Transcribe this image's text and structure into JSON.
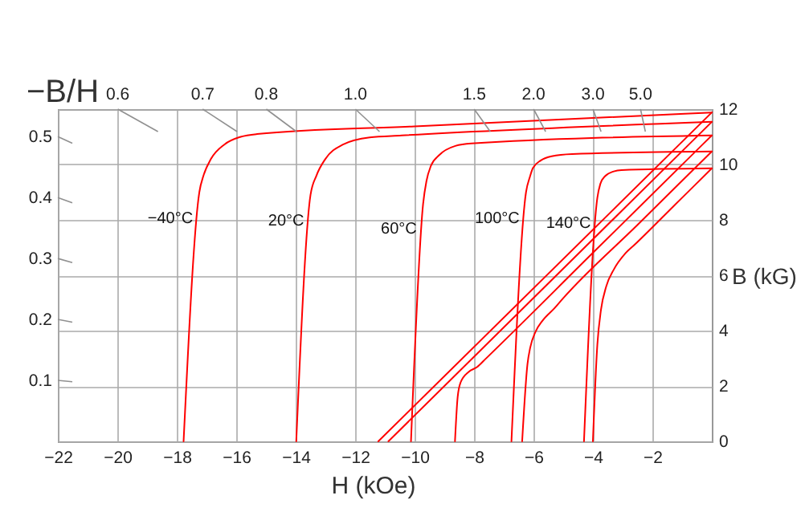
{
  "chart_data": {
    "type": "line",
    "xlabel": "H (kOe)",
    "ylabel": "−B/H",
    "y2label": "B (kG)",
    "xlim": [
      -22,
      0
    ],
    "xticks": [
      -22,
      -20,
      -18,
      -16,
      -14,
      -12,
      -10,
      -8,
      -6,
      -4,
      -2
    ],
    "ylim": [
      0,
      0.545
    ],
    "yticks": [
      0.1,
      0.2,
      0.3,
      0.4,
      0.5
    ],
    "y2lim": [
      0,
      12
    ],
    "y2ticks": [
      0,
      2,
      4,
      6,
      8,
      10,
      12
    ],
    "grid": true,
    "line_style": "solid",
    "annotations": [
      "0.6",
      "0.7",
      "0.8",
      "1.0",
      "1.5",
      "2.0",
      "3.0",
      "5.0"
    ],
    "series": [
      {
        "name": "−40°C",
        "color": "#ff0000",
        "axis": "y2",
        "x": [
          -17.77,
          -17.24,
          -17.1,
          -16.85,
          -16.4,
          -15.85,
          -15.3,
          -10,
          0
        ],
        "values": [
          0,
          9.0,
          9.6,
          10.2,
          10.72,
          11.0,
          11.1,
          11.38,
          11.88
        ]
      },
      {
        "color": "#ff0000",
        "axis": "y2",
        "x": [
          -11.22,
          0
        ],
        "values": [
          0,
          11.88
        ]
      },
      {
        "name": "20°C",
        "color": "#ff0000",
        "axis": "y2",
        "x": [
          -13.98,
          -13.5,
          -13.3,
          -13.0,
          -12.41,
          -11.51,
          -10.43,
          0
        ],
        "values": [
          0,
          8.9,
          9.6,
          10.2,
          10.72,
          10.98,
          11.05,
          11.54
        ]
      },
      {
        "color": "#ff0000",
        "axis": "y2",
        "x": [
          -10.88,
          0
        ],
        "values": [
          0,
          11.54
        ]
      },
      {
        "name": "60°C",
        "color": "#ff0000",
        "axis": "y2",
        "x": [
          -10.12,
          -9.71,
          -9.6,
          -9.45,
          -9.17,
          -8.63,
          -8.09,
          0
        ],
        "values": [
          0,
          8.6,
          9.4,
          9.95,
          10.34,
          10.67,
          10.76,
          11.05
        ]
      },
      {
        "color": "#ff0000",
        "axis": "y2",
        "x": [
          -8.64,
          -8.55,
          -8.45,
          -8.18,
          -7.9,
          -7.6,
          -4,
          0
        ],
        "values": [
          0,
          1.6,
          2.13,
          2.51,
          2.68,
          2.99,
          6.81,
          11.05
        ]
      },
      {
        "name": "100°C",
        "color": "#ff0000",
        "axis": "y2",
        "x": [
          -6.74,
          -6.25,
          -6.12,
          -6.02,
          -5.75,
          -5.39,
          -4.7,
          0
        ],
        "values": [
          0,
          9.0,
          9.55,
          9.87,
          10.15,
          10.3,
          10.38,
          10.47
        ]
      },
      {
        "color": "#ff0000",
        "axis": "y2",
        "x": [
          -6.38,
          -6.2,
          -6.11,
          -5.93,
          -5.7,
          -5.3,
          -5.0,
          -2.5,
          0
        ],
        "values": [
          0,
          2.8,
          3.38,
          3.96,
          4.35,
          4.8,
          5.17,
          7.82,
          10.47
        ]
      },
      {
        "name": "140°C",
        "color": "#ff0000",
        "axis": "y2",
        "x": [
          -4.3,
          -3.85,
          -3.75,
          -3.59,
          -3.3,
          -3.04,
          0
        ],
        "values": [
          0,
          8.8,
          9.3,
          9.58,
          9.75,
          9.8,
          9.86
        ]
      },
      {
        "color": "#ff0000",
        "axis": "y2",
        "x": [
          -4.0,
          -3.85,
          -3.73,
          -3.55,
          -3.3,
          -2.9,
          -2.6,
          -1.3,
          0
        ],
        "values": [
          0,
          3.5,
          4.74,
          5.6,
          6.2,
          6.8,
          7.1,
          8.48,
          9.86
        ]
      }
    ]
  }
}
